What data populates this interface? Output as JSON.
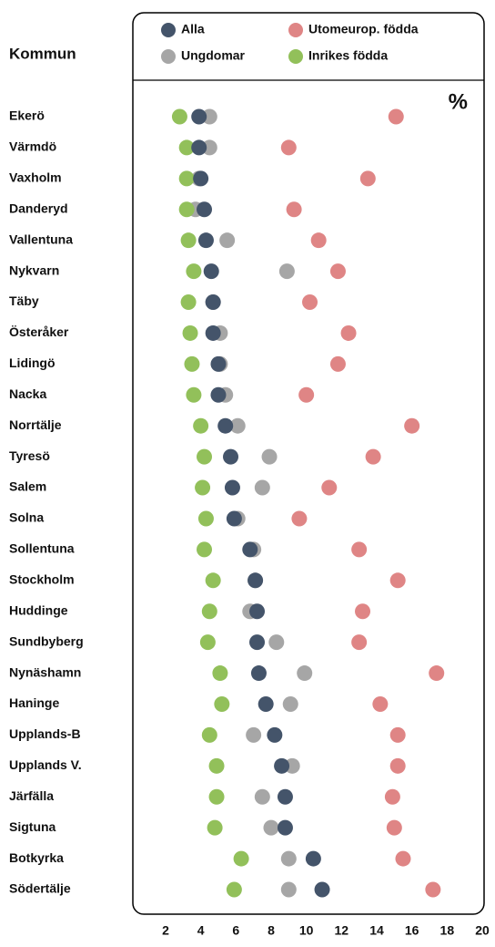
{
  "chart_data": {
    "type": "dot",
    "category_label": "Kommun",
    "unit_label": "%",
    "categories": [
      "Ekerö",
      "Värmdö",
      "Vaxholm",
      "Danderyd",
      "Vallentuna",
      "Nykvarn",
      "Täby",
      "Österåker",
      "Lidingö",
      "Nacka",
      "Norrtälje",
      "Tyresö",
      "Salem",
      "Solna",
      "Sollentuna",
      "Stockholm",
      "Huddinge",
      "Sundbyberg",
      "Nynäshamn",
      "Haninge",
      "Upplands-B",
      "Upplands V.",
      "Järfälla",
      "Sigtuna",
      "Botkyrka",
      "Södertälje"
    ],
    "series": [
      {
        "name": "Alla",
        "color": "#44546a",
        "values": [
          3.9,
          3.9,
          4.0,
          4.2,
          4.3,
          4.6,
          4.7,
          4.7,
          5.0,
          5.0,
          5.4,
          5.7,
          5.8,
          5.9,
          6.8,
          7.1,
          7.2,
          7.2,
          7.3,
          7.7,
          8.2,
          8.6,
          8.8,
          8.8,
          10.4,
          10.9
        ]
      },
      {
        "name": "Utomeurop. födda",
        "color": "#df8585",
        "values": [
          15.1,
          9.0,
          13.5,
          9.3,
          10.7,
          11.8,
          10.2,
          12.4,
          11.8,
          10.0,
          16.0,
          13.8,
          11.3,
          9.6,
          13.0,
          15.2,
          13.2,
          13.0,
          17.4,
          14.2,
          15.2,
          15.2,
          14.9,
          15.0,
          15.5,
          17.2
        ]
      },
      {
        "name": "Ungdomar",
        "color": "#a6a6a6",
        "values": [
          4.5,
          4.5,
          3.9,
          3.7,
          5.5,
          8.9,
          4.7,
          5.1,
          5.1,
          5.4,
          6.1,
          7.9,
          7.5,
          6.1,
          7.0,
          7.1,
          6.8,
          8.3,
          9.9,
          9.1,
          7.0,
          9.2,
          7.5,
          8.0,
          9.0,
          9.0
        ]
      },
      {
        "name": "Inrikes födda",
        "color": "#92c05a",
        "values": [
          2.8,
          3.2,
          3.2,
          3.2,
          3.3,
          3.6,
          3.3,
          3.4,
          3.5,
          3.6,
          4.0,
          4.2,
          4.1,
          4.3,
          4.2,
          4.7,
          4.5,
          4.4,
          5.1,
          5.2,
          4.5,
          4.9,
          4.9,
          4.8,
          6.3,
          5.9
        ]
      }
    ],
    "xlim": [
      0,
      20
    ],
    "xticks": [
      2,
      4,
      6,
      8,
      10,
      12,
      14,
      16,
      18,
      20
    ]
  }
}
